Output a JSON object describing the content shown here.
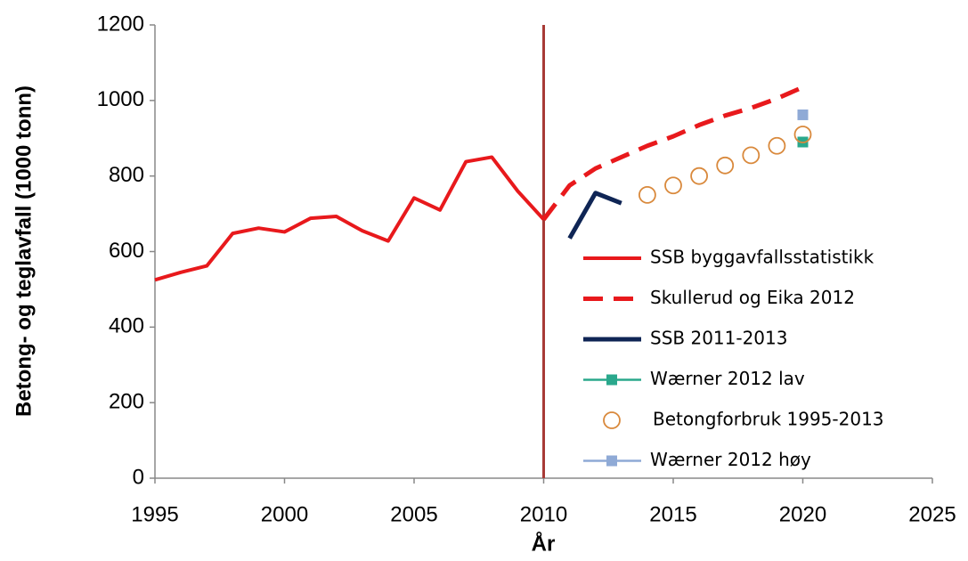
{
  "chart_data": {
    "type": "line",
    "xlabel": "År",
    "ylabel": "Betong- og teglavfall (1000 tonn)",
    "xlim": [
      1995,
      2025
    ],
    "xticks": [
      1995,
      2000,
      2005,
      2010,
      2015,
      2020,
      2025
    ],
    "ylim": [
      0,
      1200
    ],
    "yticks": [
      0,
      200,
      400,
      600,
      800,
      1000,
      1200
    ],
    "vertical_line": {
      "x": 2010,
      "color": "#a83a36"
    },
    "legend": "lower right",
    "series": [
      {
        "name": "SSB byggavfallsstatistikk",
        "color": "#e8191c",
        "line": true,
        "dash": false,
        "marker": null,
        "x": [
          1995,
          1996,
          1997,
          1998,
          1999,
          2000,
          2001,
          2002,
          2003,
          2004,
          2005,
          2006,
          2007,
          2008,
          2009,
          2010
        ],
        "values": [
          525,
          545,
          562,
          648,
          662,
          652,
          688,
          693,
          655,
          628,
          742,
          710,
          838,
          850,
          760,
          685
        ]
      },
      {
        "name": "Skullerud og Eika 2012",
        "color": "#e8191c",
        "line": true,
        "dash": true,
        "marker": null,
        "x": [
          2010,
          2011,
          2012,
          2013,
          2014,
          2015,
          2016,
          2017,
          2018,
          2019,
          2020
        ],
        "values": [
          685,
          775,
          820,
          850,
          880,
          905,
          935,
          960,
          980,
          1005,
          1035
        ]
      },
      {
        "name": "SSB 2011-2013",
        "color": "#0f2555",
        "line": true,
        "dash": false,
        "marker": null,
        "x": [
          2011,
          2012,
          2013
        ],
        "values": [
          635,
          755,
          728
        ]
      },
      {
        "name": "Wærner 2012 lav",
        "color": "#2aa88c",
        "line": true,
        "dash": false,
        "marker": "square",
        "x": [
          2020
        ],
        "values": [
          890
        ]
      },
      {
        "name": "Betongforbruk 1995-2013",
        "color": "#d9893c",
        "line": false,
        "dash": false,
        "marker": "circle",
        "x": [
          2014,
          2015,
          2016,
          2017,
          2018,
          2019,
          2020
        ],
        "values": [
          750,
          775,
          800,
          828,
          855,
          880,
          910
        ]
      },
      {
        "name": "Wærner 2012 høy",
        "color": "#8faad6",
        "line": true,
        "dash": false,
        "marker": "square",
        "x": [
          2020
        ],
        "values": [
          962
        ]
      }
    ]
  }
}
